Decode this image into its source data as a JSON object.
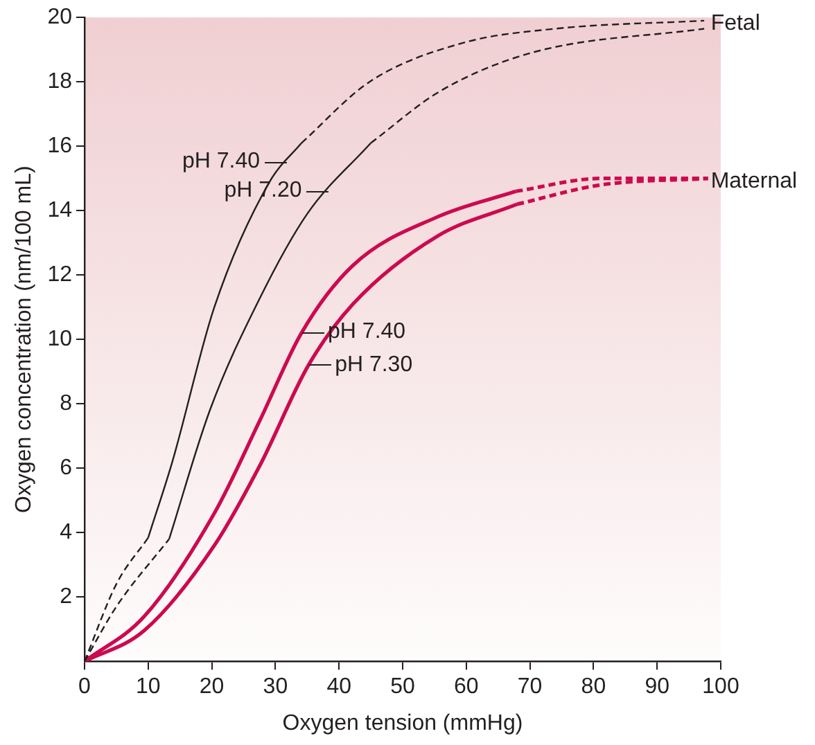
{
  "chart_data": {
    "type": "line",
    "xlabel": "Oxygen tension (mmHg)",
    "ylabel": "Oxygen concentration (nm/100 mL)",
    "xlim": [
      0,
      100
    ],
    "ylim": [
      0,
      20
    ],
    "xticks": [
      0,
      10,
      20,
      30,
      40,
      50,
      60,
      70,
      80,
      90,
      100
    ],
    "yticks": [
      2,
      4,
      6,
      8,
      10,
      12,
      14,
      16,
      18,
      20
    ],
    "grid": false,
    "legend": false,
    "marker": "none",
    "series": [
      {
        "color": "#231f20",
        "line_style": "dashed",
        "x": [
          0,
          5,
          10
        ],
        "values": [
          0,
          2.4,
          3.84
        ]
      },
      {
        "color": "#231f20",
        "line_style": "solid",
        "x": [
          10,
          13.8,
          20.4,
          29.1,
          34.1
        ],
        "values": [
          3.84,
          6.2,
          11.0,
          14.9,
          16.1
        ]
      },
      {
        "color": "#231f20",
        "line_style": "dashed",
        "x": [
          34.1,
          44.8,
          59.3,
          74,
          97.4
        ],
        "values": [
          16.1,
          18.0,
          19.2,
          19.65,
          19.9
        ]
      },
      {
        "color": "#231f20",
        "line_style": "dashed",
        "x": [
          0,
          5,
          13.3
        ],
        "values": [
          0,
          1.7,
          3.8
        ]
      },
      {
        "color": "#231f20",
        "line_style": "solid",
        "x": [
          13.3,
          19.7,
          27.6,
          35,
          45
        ],
        "values": [
          3.8,
          7.8,
          11.3,
          13.9,
          16.1
        ]
      },
      {
        "color": "#231f20",
        "line_style": "dashed",
        "x": [
          45,
          55.8,
          70.2,
          97.4
        ],
        "values": [
          16.1,
          17.7,
          18.9,
          19.65
        ]
      },
      {
        "color": "#cc0a4f",
        "line_style": "solid",
        "x": [
          0,
          9.4,
          20.4,
          27.6,
          34.1,
          42.2,
          55.4,
          67.8
        ],
        "values": [
          0,
          1.4,
          4.6,
          7.5,
          10.2,
          12.3,
          13.8,
          14.6
        ]
      },
      {
        "color": "#cc0a4f",
        "line_style": "dashed",
        "x": [
          67.8,
          81.2,
          98
        ],
        "values": [
          14.6,
          15.0,
          15.0
        ]
      },
      {
        "color": "#cc0a4f",
        "line_style": "solid",
        "x": [
          0,
          9.4,
          20.4,
          27.6,
          35.2,
          42.2,
          55.4,
          68
        ],
        "values": [
          0,
          0.96,
          3.6,
          6.1,
          9.2,
          11.1,
          13.2,
          14.2
        ]
      },
      {
        "color": "#cc0a4f",
        "line_style": "dashed",
        "x": [
          68,
          81.2,
          98
        ],
        "values": [
          14.2,
          14.8,
          15.0
        ]
      }
    ],
    "annotations": [
      {
        "text": "pH 7.40",
        "x": 31.7,
        "y": 15.5
      },
      {
        "text": "pH 7.20",
        "x": 38.3,
        "y": 14.6
      },
      {
        "text": "pH 7.40",
        "x": 34.1,
        "y": 10.2
      },
      {
        "text": "pH 7.30",
        "x": 35.2,
        "y": 9.2
      },
      {
        "text": "Fetal",
        "x": 98,
        "y": 19.8
      },
      {
        "text": "Maternal",
        "x": 98,
        "y": 14.9
      }
    ]
  }
}
